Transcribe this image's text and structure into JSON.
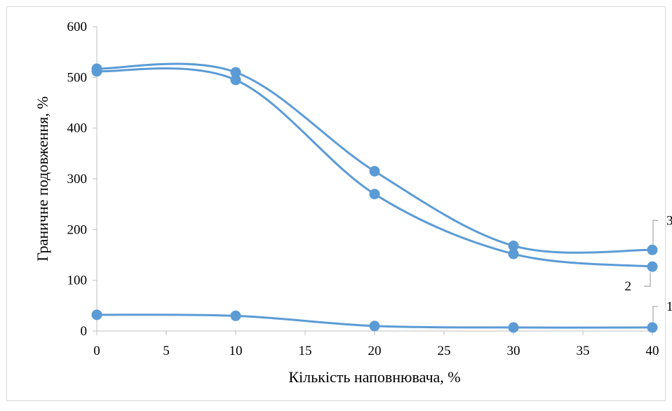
{
  "chart_data": {
    "type": "line",
    "xlabel": "Кількість наповнювача, %",
    "ylabel": "Граничне подовження, %",
    "xlim": [
      0,
      40
    ],
    "ylim": [
      0,
      600
    ],
    "x_ticks": [
      0,
      5,
      10,
      15,
      20,
      25,
      30,
      35,
      40
    ],
    "y_ticks": [
      0,
      100,
      200,
      300,
      400,
      500,
      600
    ],
    "x_tick_labels": [
      "0",
      "5",
      "10",
      "15",
      "20",
      "25",
      "30",
      "35",
      "40"
    ],
    "y_tick_labels": [
      "0",
      "100",
      "200",
      "300",
      "400",
      "500",
      "600"
    ],
    "grid": false,
    "smoothed": true,
    "series_color": "#5b9bd5",
    "series": [
      {
        "label": "1",
        "x": [
          0,
          10,
          20,
          30,
          40
        ],
        "values": [
          32,
          30,
          10,
          7,
          7
        ]
      },
      {
        "label": "2",
        "x": [
          0,
          10,
          20,
          30,
          40
        ],
        "values": [
          512,
          495,
          270,
          152,
          127
        ]
      },
      {
        "label": "3",
        "x": [
          0,
          10,
          20,
          30,
          40
        ],
        "values": [
          517,
          510,
          315,
          168,
          160
        ]
      }
    ]
  }
}
